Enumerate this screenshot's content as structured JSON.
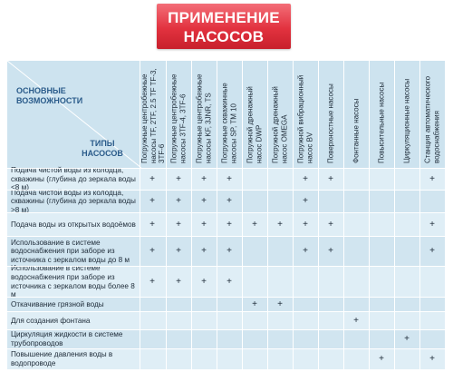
{
  "title": {
    "line1": "ПРИМЕНЕНИЕ",
    "line2": "НАСОСОВ"
  },
  "corner": {
    "top_line1": "ОСНОВНЫЕ",
    "top_line2": "ВОЗМОЖНОСТИ",
    "bottom_line1": "ТИПЫ",
    "bottom_line2": "НАСОСОВ"
  },
  "columns": [
    "Погружные центробежные насосы TF, 2TF, 2.5 TF TF-3, 3TF-6",
    "Погружные центробежные насосы 3TF-4, 3TF-6",
    "Погружные центробежные насосы KF, 3JNR, TS",
    "Погружные скважинные насосы SP, TM 10",
    "Погружной дренажный насос DWP",
    "Погружной дренажный насос OMEGA",
    "Погружной вибрационный насос BV",
    "Поверхностные насосы",
    "Фонтанные насосы",
    "Повысительные насосы",
    "Циркуляционные насосы",
    "Станция автоматического водоснабжения"
  ],
  "rows": [
    {
      "label": "Подача чистой воды из колодца, скважины (глубина до зеркала воды <8 м)",
      "marks": [
        1,
        1,
        1,
        1,
        0,
        0,
        1,
        1,
        0,
        0,
        0,
        1
      ]
    },
    {
      "label": "Подача чистой воды из колодца, скважины (глубина до зеркала воды >8 м)",
      "marks": [
        1,
        1,
        1,
        1,
        0,
        0,
        1,
        0,
        0,
        0,
        0,
        0
      ]
    },
    {
      "label": "Подача воды из открытых водоёмов",
      "marks": [
        1,
        1,
        1,
        1,
        1,
        1,
        1,
        1,
        0,
        0,
        0,
        1
      ]
    },
    {
      "label": "Использование в системе водоснабжения при заборе из источника с зеркалом воды до 8 м",
      "marks": [
        1,
        1,
        1,
        1,
        0,
        0,
        1,
        1,
        0,
        0,
        0,
        1
      ]
    },
    {
      "label": "Использование в системе водоснабжения при заборе из источника с зеркалом воды более 8 м",
      "marks": [
        1,
        1,
        1,
        1,
        0,
        0,
        0,
        0,
        0,
        0,
        0,
        0
      ]
    },
    {
      "label": "Откачивание грязной воды",
      "marks": [
        0,
        0,
        0,
        0,
        1,
        1,
        0,
        0,
        0,
        0,
        0,
        0
      ]
    },
    {
      "label": "Для создания фонтана",
      "marks": [
        0,
        0,
        0,
        0,
        0,
        0,
        0,
        0,
        1,
        0,
        0,
        0
      ]
    },
    {
      "label": "Циркуляция жидкости в системе трубопроводов",
      "marks": [
        0,
        0,
        0,
        0,
        0,
        0,
        0,
        0,
        0,
        0,
        1,
        0
      ]
    },
    {
      "label": "Повышение давления воды в водопроводе",
      "marks": [
        0,
        0,
        0,
        0,
        0,
        0,
        0,
        0,
        0,
        1,
        0,
        1
      ]
    }
  ],
  "mark_symbol": "+",
  "colors": {
    "title_bg": "#e2323f",
    "header_bg": "#cde3ef",
    "row_light": "#dfeef6",
    "row_dark": "#d1e5f0",
    "accent_text": "#2a5b8a"
  }
}
